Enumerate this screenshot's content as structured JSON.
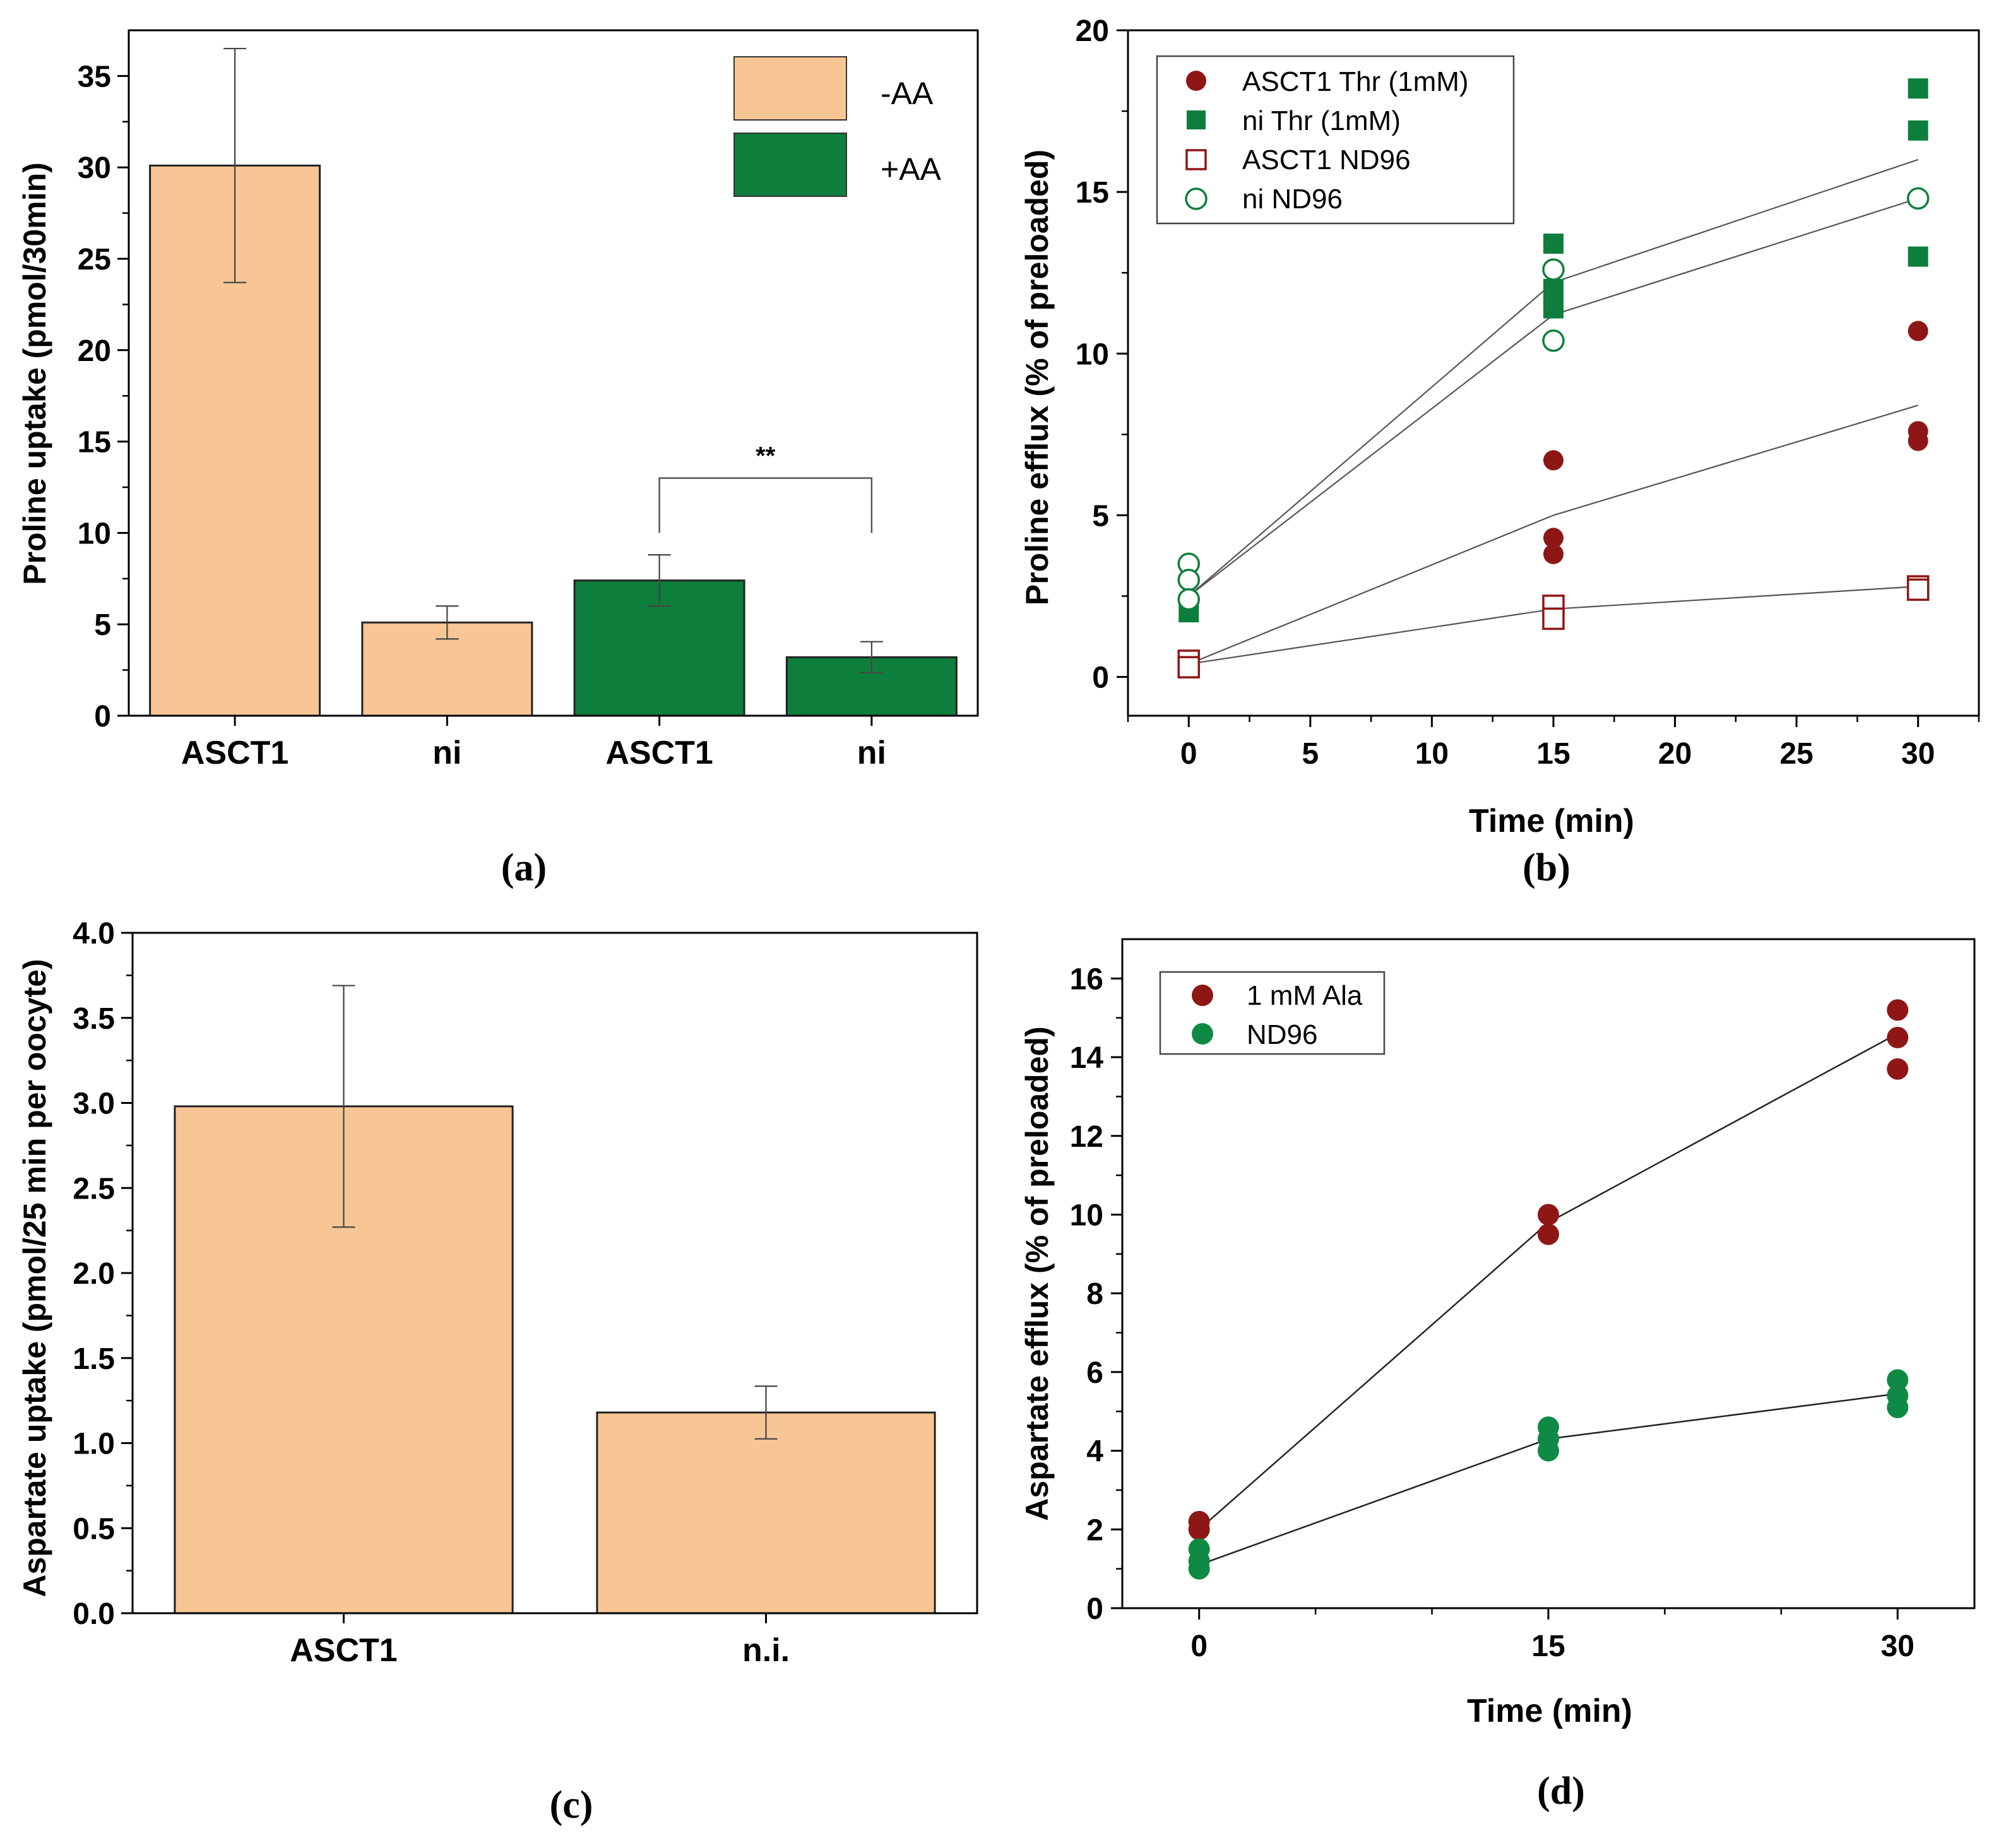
{
  "colors": {
    "orange": "#F8C594",
    "green": "#0E7E3C",
    "darkred": "#8E1716",
    "line": "#333333"
  },
  "chart_data": [
    {
      "id": "a",
      "panel_label": "(a)",
      "type": "bar",
      "ylabel": "Proline uptake (pmol/30min)",
      "ylim": [
        0,
        37.5
      ],
      "yticks": [
        0,
        5,
        10,
        15,
        20,
        25,
        30,
        35
      ],
      "categories": [
        "ASCT1",
        "ni",
        "ASCT1",
        "ni"
      ],
      "values": [
        30.1,
        5.1,
        7.4,
        3.2
      ],
      "errors": [
        6.4,
        0.9,
        1.4,
        0.85
      ],
      "groups": [
        "-AA",
        "-AA",
        "+AA",
        "+AA"
      ],
      "legend": [
        {
          "name": "-AA",
          "color": "#F8C594"
        },
        {
          "name": "+AA",
          "color": "#0E7E3C"
        }
      ],
      "annotation": {
        "text": "**",
        "between": [
          2,
          3
        ],
        "y": 13,
        "y_left": 10,
        "y_right": 10
      }
    },
    {
      "id": "b",
      "panel_label": "(b)",
      "type": "scatter",
      "xlabel": "Time (min)",
      "ylabel": "Proline efflux (% of preloaded)",
      "xlim": [
        -2.5,
        32.5
      ],
      "ylim": [
        -1.2,
        20
      ],
      "xticks": [
        0,
        5,
        10,
        15,
        20,
        25,
        30
      ],
      "yticks": [
        0,
        5,
        10,
        15,
        20
      ],
      "series": [
        {
          "name": "ASCT1 Thr (1mM)",
          "marker": "circle-filled",
          "color": "#8E1716",
          "points": [
            [
              0,
              0.5
            ],
            [
              0,
              0.3
            ],
            [
              15,
              6.7
            ],
            [
              15,
              4.3
            ],
            [
              15,
              3.8
            ],
            [
              30,
              10.7
            ],
            [
              30,
              7.6
            ],
            [
              30,
              7.3
            ]
          ],
          "fit": [
            [
              0,
              0.4
            ],
            [
              15,
              5.0
            ],
            [
              30,
              8.4
            ]
          ]
        },
        {
          "name": "ni Thr (1mM)",
          "marker": "square-filled",
          "color": "#0E7E3C",
          "points": [
            [
              0,
              2.0
            ],
            [
              15,
              13.4
            ],
            [
              15,
              12.0
            ],
            [
              15,
              11.4
            ],
            [
              30,
              18.2
            ],
            [
              30,
              16.9
            ],
            [
              30,
              13.0
            ]
          ],
          "fit": [
            [
              0,
              2.5
            ],
            [
              15,
              12.2
            ],
            [
              30,
              16.0
            ]
          ]
        },
        {
          "name": "ASCT1 ND96",
          "marker": "square-open",
          "color": "#8E1716",
          "points": [
            [
              0,
              0.5
            ],
            [
              0,
              0.3
            ],
            [
              15,
              2.2
            ],
            [
              15,
              1.8
            ],
            [
              30,
              2.8
            ],
            [
              30,
              2.7
            ]
          ],
          "fit": [
            [
              0,
              0.4
            ],
            [
              15,
              2.1
            ],
            [
              30,
              2.8
            ]
          ]
        },
        {
          "name": "ni ND96",
          "marker": "circle-open",
          "color": "#0E7E3C",
          "points": [
            [
              0,
              3.5
            ],
            [
              0,
              3.0
            ],
            [
              0,
              2.4
            ],
            [
              15,
              12.6
            ],
            [
              15,
              10.4
            ],
            [
              30,
              14.8
            ]
          ],
          "fit": [
            [
              0,
              2.5
            ],
            [
              15,
              11.2
            ],
            [
              30,
              14.8
            ]
          ]
        }
      ]
    },
    {
      "id": "c",
      "panel_label": "(c)",
      "type": "bar",
      "ylabel": "Aspartate uptake (pmol/25 min per oocyte)",
      "ylim": [
        0,
        4.0
      ],
      "yticks": [
        "0.0",
        "0.5",
        "1.0",
        "1.5",
        "2.0",
        "2.5",
        "3.0",
        "3.5",
        "4.0"
      ],
      "categories": [
        "ASCT1",
        "n.i."
      ],
      "values": [
        2.98,
        1.18
      ],
      "errors": [
        0.71,
        0.155
      ]
    },
    {
      "id": "d",
      "panel_label": "(d)",
      "type": "scatter",
      "xlabel": "Time (min)",
      "ylabel": "Aspartate efflux (% of preloaded)",
      "xlim": [
        -3.3,
        33.3
      ],
      "ylim": [
        0,
        17
      ],
      "xticks": [
        0,
        15,
        30
      ],
      "yticks": [
        0,
        2,
        4,
        6,
        8,
        10,
        12,
        14,
        16
      ],
      "series": [
        {
          "name": "1 mM Ala",
          "marker": "circle-filled",
          "color": "#8E1716",
          "points": [
            [
              0,
              2.2
            ],
            [
              0,
              2.0
            ],
            [
              15,
              10.0
            ],
            [
              15,
              9.5
            ],
            [
              30,
              15.2
            ],
            [
              30,
              14.5
            ],
            [
              30,
              13.7
            ]
          ],
          "fit": [
            [
              0,
              2.0
            ],
            [
              15,
              9.8
            ],
            [
              30,
              14.6
            ]
          ]
        },
        {
          "name": "ND96",
          "marker": "circle-filled",
          "color": "#0E8A45",
          "points": [
            [
              0,
              1.5
            ],
            [
              0,
              1.2
            ],
            [
              0,
              1.0
            ],
            [
              15,
              4.6
            ],
            [
              15,
              4.3
            ],
            [
              15,
              4.0
            ],
            [
              30,
              5.8
            ],
            [
              30,
              5.4
            ],
            [
              30,
              5.1
            ]
          ],
          "fit": [
            [
              0,
              1.1
            ],
            [
              15,
              4.3
            ],
            [
              30,
              5.45
            ]
          ]
        }
      ]
    }
  ]
}
